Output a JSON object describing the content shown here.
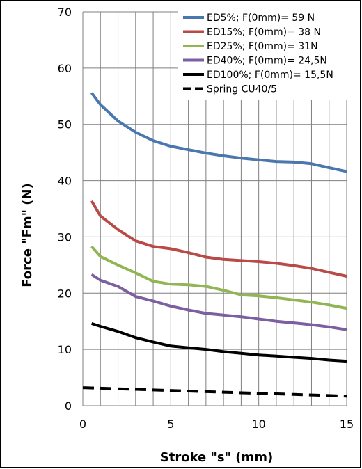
{
  "chart_data": {
    "type": "line",
    "title": "",
    "xlabel": "Stroke \"s\" (mm)",
    "ylabel": "Force \"Fm\" (N)",
    "xlim": [
      0,
      15
    ],
    "ylim": [
      0,
      70
    ],
    "xticks": [
      0,
      5,
      10,
      15
    ],
    "yticks": [
      0,
      10,
      20,
      30,
      40,
      50,
      60,
      70
    ],
    "x_minor_step": 1,
    "grid": true,
    "legend_position": "top-right",
    "series": [
      {
        "name": "ED5%; F(0mm)= 59 N",
        "color": "#4a77ad",
        "dash": "solid",
        "points": [
          [
            0.5,
            55.6
          ],
          [
            1,
            53.5
          ],
          [
            2,
            50.6
          ],
          [
            3,
            48.6
          ],
          [
            4,
            47.1
          ],
          [
            5,
            46.1
          ],
          [
            6,
            45.5
          ],
          [
            7,
            44.9
          ],
          [
            8,
            44.4
          ],
          [
            9,
            44.0
          ],
          [
            10,
            43.7
          ],
          [
            11,
            43.4
          ],
          [
            12,
            43.3
          ],
          [
            13,
            43.0
          ],
          [
            14,
            42.3
          ],
          [
            15,
            41.6
          ]
        ]
      },
      {
        "name": "ED15%; F(0mm)= 38 N",
        "color": "#b94a47",
        "dash": "solid",
        "points": [
          [
            0.5,
            36.4
          ],
          [
            1,
            33.7
          ],
          [
            2,
            31.3
          ],
          [
            3,
            29.3
          ],
          [
            4,
            28.3
          ],
          [
            5,
            27.9
          ],
          [
            6,
            27.2
          ],
          [
            7,
            26.4
          ],
          [
            8,
            26.0
          ],
          [
            9,
            25.8
          ],
          [
            10,
            25.6
          ],
          [
            11,
            25.3
          ],
          [
            12,
            24.9
          ],
          [
            13,
            24.4
          ],
          [
            14,
            23.7
          ],
          [
            15,
            23.0
          ]
        ]
      },
      {
        "name": "ED25%; F(0mm)= 31N",
        "color": "#92b553",
        "dash": "solid",
        "points": [
          [
            0.5,
            28.3
          ],
          [
            1,
            26.5
          ],
          [
            2,
            25.0
          ],
          [
            3,
            23.6
          ],
          [
            4,
            22.1
          ],
          [
            5,
            21.6
          ],
          [
            6,
            21.5
          ],
          [
            7,
            21.2
          ],
          [
            8,
            20.5
          ],
          [
            9,
            19.7
          ],
          [
            10,
            19.5
          ],
          [
            11,
            19.2
          ],
          [
            12,
            18.8
          ],
          [
            13,
            18.4
          ],
          [
            14,
            17.9
          ],
          [
            15,
            17.3
          ]
        ]
      },
      {
        "name": "ED40%; F(0mm)= 24,5N",
        "color": "#7b5fa1",
        "dash": "solid",
        "points": [
          [
            0.5,
            23.3
          ],
          [
            1,
            22.3
          ],
          [
            2,
            21.2
          ],
          [
            3,
            19.4
          ],
          [
            4,
            18.6
          ],
          [
            5,
            17.7
          ],
          [
            6,
            17.0
          ],
          [
            7,
            16.4
          ],
          [
            8,
            16.1
          ],
          [
            9,
            15.8
          ],
          [
            10,
            15.4
          ],
          [
            11,
            15.0
          ],
          [
            12,
            14.7
          ],
          [
            13,
            14.4
          ],
          [
            14,
            14.0
          ],
          [
            15,
            13.5
          ]
        ]
      },
      {
        "name": "ED100%; F(0mm)= 15,5N",
        "color": "#000000",
        "dash": "solid",
        "points": [
          [
            0.5,
            14.6
          ],
          [
            1,
            14.1
          ],
          [
            2,
            13.2
          ],
          [
            3,
            12.1
          ],
          [
            4,
            11.3
          ],
          [
            5,
            10.6
          ],
          [
            6,
            10.3
          ],
          [
            7,
            10.0
          ],
          [
            8,
            9.6
          ],
          [
            9,
            9.3
          ],
          [
            10,
            9.0
          ],
          [
            11,
            8.8
          ],
          [
            12,
            8.6
          ],
          [
            13,
            8.4
          ],
          [
            14,
            8.1
          ],
          [
            15,
            7.9
          ]
        ]
      },
      {
        "name": "Spring CU40/5",
        "color": "#000000",
        "dash": "dashed",
        "points": [
          [
            0,
            3.2
          ],
          [
            2,
            3.0
          ],
          [
            4,
            2.8
          ],
          [
            6,
            2.6
          ],
          [
            8,
            2.4
          ],
          [
            10,
            2.2
          ],
          [
            12,
            2.0
          ],
          [
            14,
            1.8
          ],
          [
            15,
            1.7
          ]
        ]
      }
    ]
  }
}
